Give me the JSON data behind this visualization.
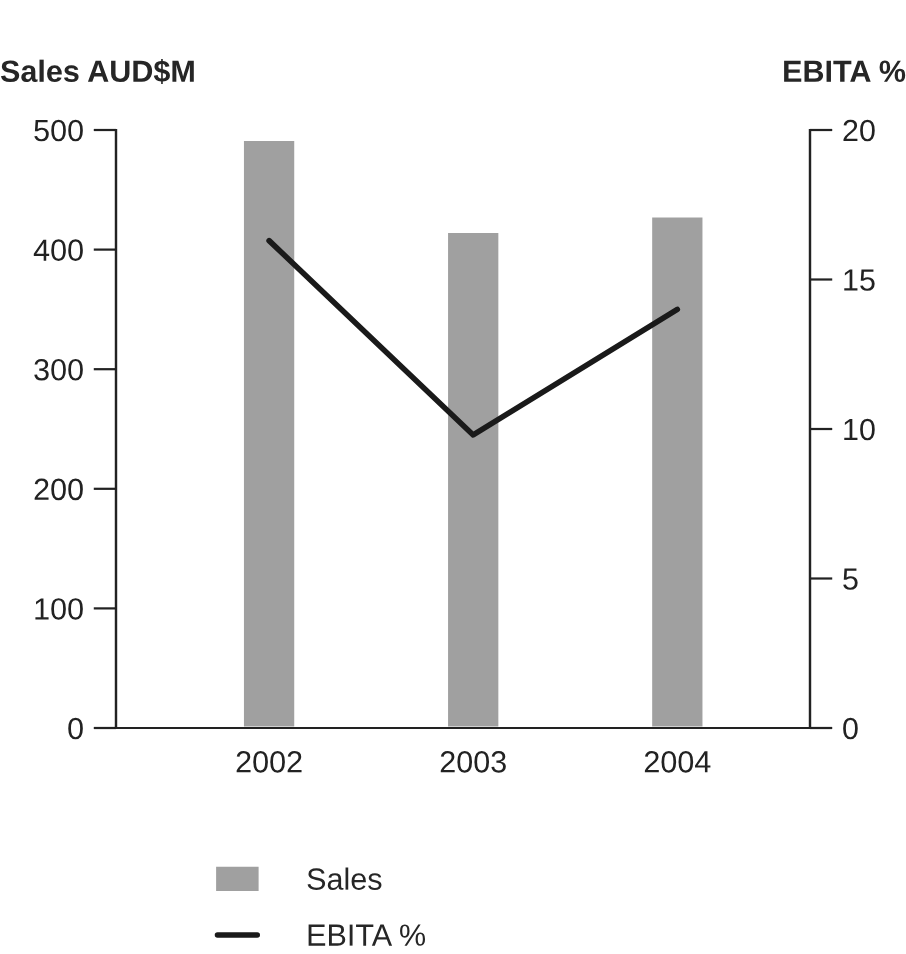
{
  "chart_data": {
    "type": "bar",
    "categories": [
      "2002",
      "2003",
      "2004"
    ],
    "ylabel": "Sales AUD$M",
    "y2label": "EBITA %",
    "ylim": [
      0,
      500
    ],
    "yticks": [
      0,
      100,
      200,
      300,
      400,
      500
    ],
    "y2lim": [
      0,
      20
    ],
    "y2ticks": [
      0,
      5,
      10,
      15,
      20
    ],
    "series": [
      {
        "name": "Sales",
        "type": "bar",
        "color": "#a0a0a0",
        "values": [
          492,
          415,
          428
        ]
      },
      {
        "name": "EBITA %",
        "type": "line",
        "axis": "y2",
        "color": "#1a1a1a",
        "values": [
          16.3,
          9.8,
          14.0
        ]
      }
    ],
    "legend": "bottom",
    "grid": false
  }
}
